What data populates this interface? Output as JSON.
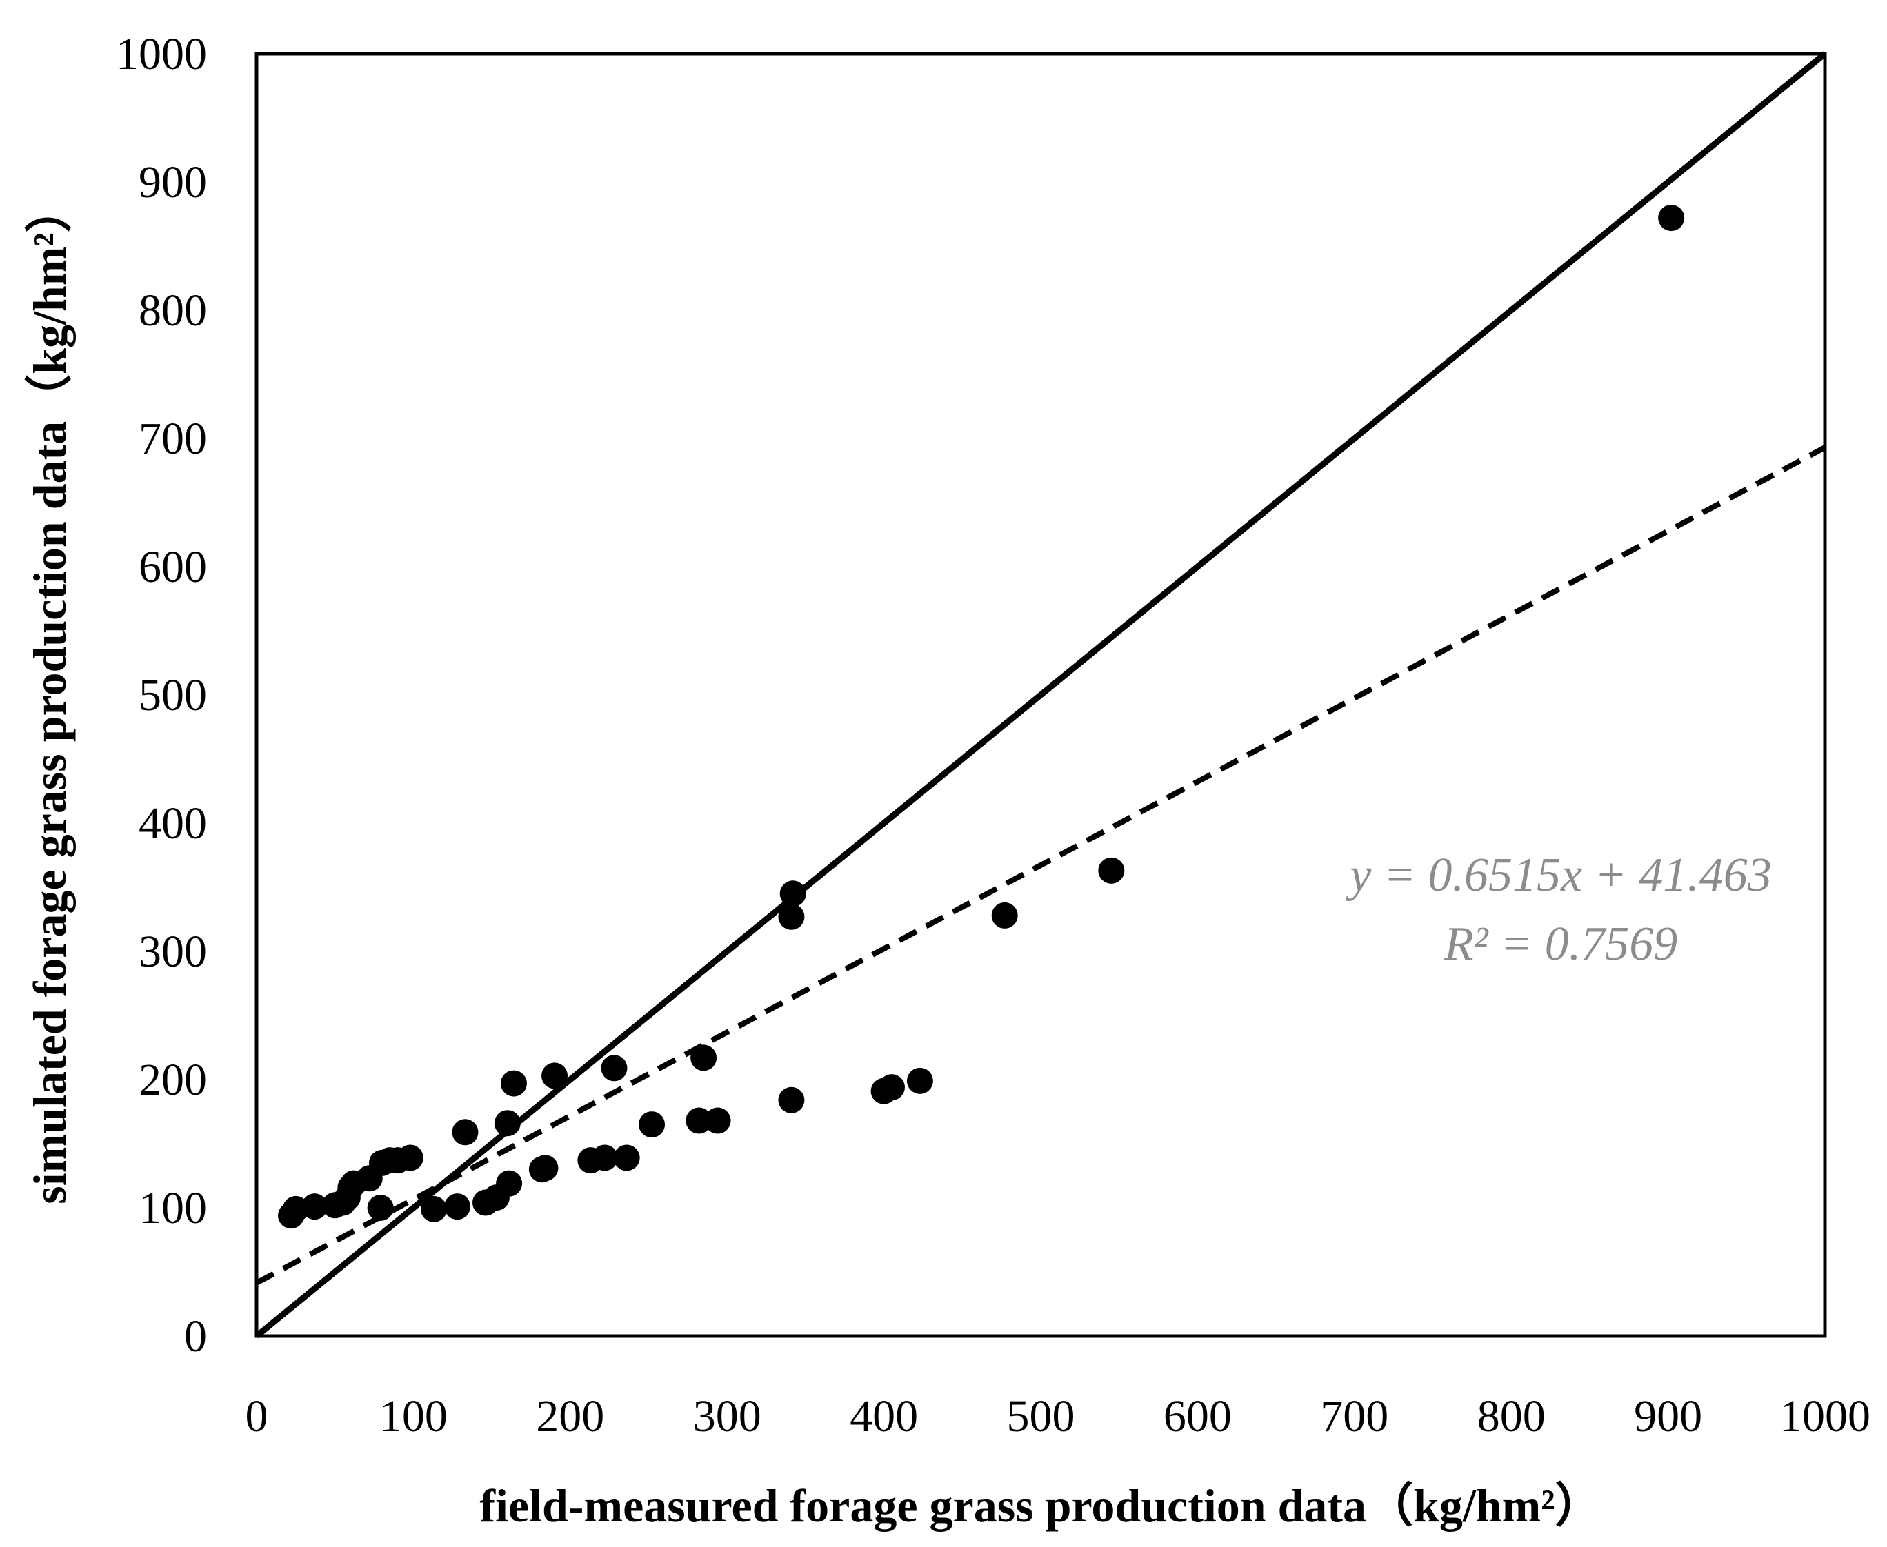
{
  "chart_data": {
    "type": "scatter",
    "xlabel": "field-measured forage grass production data（kg/hm²）",
    "ylabel": "simulated forage grass production data（kg/hm²）",
    "xlim": [
      0,
      1000
    ],
    "ylim": [
      0,
      1000
    ],
    "xticks": [
      "0",
      "100",
      "200",
      "300",
      "400",
      "500",
      "600",
      "700",
      "800",
      "900",
      "1000"
    ],
    "yticks": [
      "0",
      "100",
      "200",
      "300",
      "400",
      "500",
      "600",
      "700",
      "800",
      "900",
      "1000"
    ],
    "grid": false,
    "legend": null,
    "series": [
      {
        "name": "observations",
        "kind": "points",
        "color": "#000000",
        "points": [
          [
            22,
            94
          ],
          [
            25,
            99
          ],
          [
            37,
            101
          ],
          [
            50,
            102
          ],
          [
            55,
            104
          ],
          [
            58,
            108
          ],
          [
            60,
            116
          ],
          [
            62,
            119
          ],
          [
            72,
            123
          ],
          [
            79,
            100
          ],
          [
            80,
            135
          ],
          [
            85,
            137
          ],
          [
            90,
            137
          ],
          [
            98,
            139
          ],
          [
            113,
            99
          ],
          [
            128,
            101
          ],
          [
            133,
            159
          ],
          [
            146,
            104
          ],
          [
            153,
            108
          ],
          [
            160,
            166
          ],
          [
            161,
            119
          ],
          [
            164,
            197
          ],
          [
            182,
            130
          ],
          [
            184,
            131
          ],
          [
            190,
            203
          ],
          [
            213,
            137
          ],
          [
            222,
            139
          ],
          [
            228,
            209
          ],
          [
            236,
            139
          ],
          [
            252,
            165
          ],
          [
            282,
            168
          ],
          [
            285,
            217
          ],
          [
            294,
            168
          ],
          [
            341,
            184
          ],
          [
            341,
            327
          ],
          [
            342,
            345
          ],
          [
            400,
            191
          ],
          [
            405,
            194
          ],
          [
            423,
            199
          ],
          [
            477,
            328
          ],
          [
            545,
            363
          ],
          [
            902,
            872
          ]
        ]
      },
      {
        "name": "1:1 line",
        "kind": "line",
        "style": "solid",
        "color": "#000000",
        "x": [
          0,
          1000
        ],
        "y": [
          0,
          1000
        ]
      },
      {
        "name": "linear fit",
        "kind": "line",
        "style": "dashed",
        "color": "#000000",
        "slope": 0.6515,
        "intercept": 41.463,
        "x": [
          0,
          1000
        ],
        "y": [
          41.463,
          692.963
        ]
      }
    ],
    "annotations": [
      {
        "name": "regression-equation",
        "text": "y = 0.6515x + 41.463",
        "color": "#8c8c8c"
      },
      {
        "name": "r-squared",
        "text": "R² = 0.7569",
        "color": "#8c8c8c"
      }
    ]
  }
}
